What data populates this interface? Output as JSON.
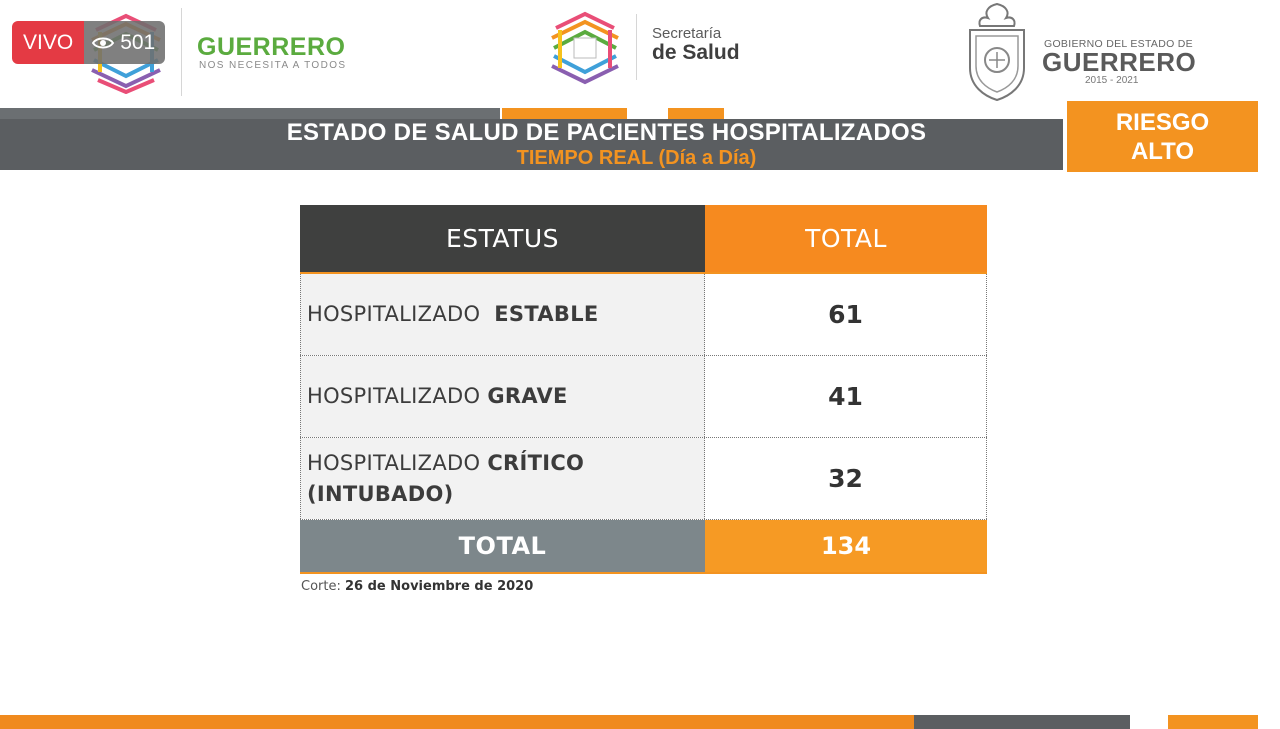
{
  "live": {
    "label": "VIVO",
    "viewers": "501"
  },
  "header": {
    "brand_title": "GUERRERO",
    "brand_tagline": "NOS NECESITA A TODOS",
    "ministry_line1": "Secretaría",
    "ministry_line2": "de Salud",
    "gov_small": "GOBIERNO DEL ESTADO DE",
    "gov_big": "GUERRERO",
    "gov_years": "2015 - 2021"
  },
  "banner": {
    "title": "ESTADO DE SALUD DE PACIENTES HOSPITALIZADOS",
    "subtitle": "TIEMPO REAL (Día a Día)",
    "risk_line1": "RIESGO",
    "risk_line2": "ALTO"
  },
  "table": {
    "header_status": "ESTATUS",
    "header_total": "TOTAL",
    "rows": [
      {
        "prefix": "HOSPITALIZADO ",
        "status": "ESTABLE",
        "suffix": "",
        "total": "61"
      },
      {
        "prefix": "HOSPITALIZADO",
        "status": "GRAVE",
        "suffix": "",
        "total": "41"
      },
      {
        "prefix": "HOSPITALIZADO",
        "status": "CRÍTICO",
        "suffix": "(INTUBADO)",
        "total": "32"
      }
    ],
    "footer_label": "TOTAL",
    "footer_total": "134"
  },
  "corte": {
    "label": "Corte:",
    "date": "26 de Noviembre de 2020"
  },
  "colors": {
    "orange": "#f39320",
    "dark_gray": "#5b5e61",
    "green": "#5bab3f",
    "live_red": "#e43a44"
  }
}
